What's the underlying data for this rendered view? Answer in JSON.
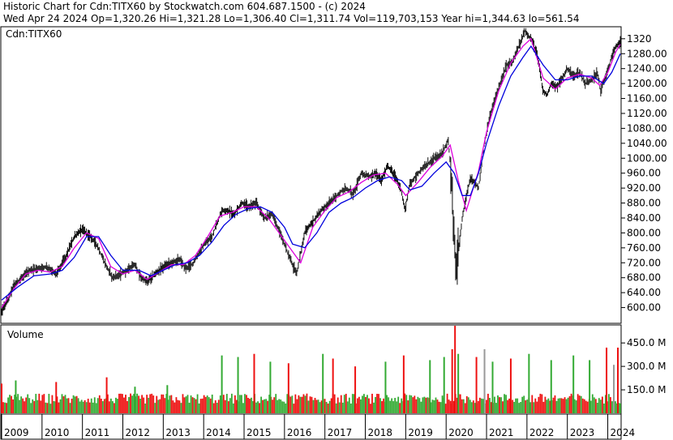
{
  "header": {
    "line1": "Historic Chart for Cdn:TITX60 by Stockwatch.com 604.687.1500 - (c) 2024",
    "line2": "Wed Apr 24 2024   Op=1,320.26   Hi=1,321.28   Lo=1,306.40   Cl=1,311.74   Vol=119,703,153   Year hi=1,344.63   lo=561.54"
  },
  "colors": {
    "price_bar": "#111111",
    "ma_short": "#dd00dd",
    "ma_long": "#0000dd",
    "volume_up": "#33aa33",
    "volume_down": "#ee1111",
    "volume_flat": "#999999",
    "frame": "#000000"
  },
  "chart_data": [
    {
      "type": "line",
      "panel": "price",
      "title": "Cdn:TITX60",
      "ylim": [
        560,
        1350
      ],
      "yticks": [
        600,
        640,
        680,
        720,
        760,
        800,
        840,
        880,
        920,
        960,
        1000,
        1040,
        1080,
        1120,
        1160,
        1200,
        1240,
        1280,
        1320
      ],
      "ytick_labels": [
        "600.00",
        "640.00",
        "680.00",
        "720.00",
        "760.00",
        "800.00",
        "840.00",
        "880.00",
        "920.00",
        "960.00",
        "1000.00",
        "1040.00",
        "1080.00",
        "1120.00",
        "1160.00",
        "1200.00",
        "1240.00",
        "1280.00",
        "1320"
      ],
      "x_labels": [
        "2009",
        "2010",
        "2011",
        "2012",
        "2013",
        "2014",
        "2015",
        "2016",
        "2017",
        "2018",
        "2019",
        "2020",
        "2021",
        "2022",
        "2023",
        "2024"
      ],
      "x_start": 2009.0,
      "x_end": 2024.31,
      "series": [
        {
          "role": "price",
          "x": [
            2009.0,
            2009.15,
            2009.3,
            2009.5,
            2009.7,
            2009.9,
            2010.1,
            2010.35,
            2010.6,
            2010.8,
            2011.0,
            2011.2,
            2011.35,
            2011.55,
            2011.75,
            2011.95,
            2012.1,
            2012.3,
            2012.45,
            2012.6,
            2012.8,
            2013.0,
            2013.2,
            2013.4,
            2013.55,
            2013.75,
            2013.95,
            2014.2,
            2014.45,
            2014.6,
            2014.75,
            2014.95,
            2015.1,
            2015.3,
            2015.5,
            2015.7,
            2015.85,
            2016.0,
            2016.1,
            2016.3,
            2016.5,
            2016.7,
            2016.9,
            2017.1,
            2017.3,
            2017.5,
            2017.7,
            2017.9,
            2018.1,
            2018.25,
            2018.4,
            2018.55,
            2018.75,
            2018.9,
            2018.98,
            2019.1,
            2019.3,
            2019.5,
            2019.7,
            2019.9,
            2020.05,
            2020.13,
            2020.2,
            2020.25,
            2020.4,
            2020.6,
            2020.8,
            2020.95,
            2021.1,
            2021.3,
            2021.5,
            2021.65,
            2021.8,
            2021.95,
            2022.1,
            2022.25,
            2022.4,
            2022.5,
            2022.6,
            2022.75,
            2022.9,
            2023.0,
            2023.15,
            2023.3,
            2023.45,
            2023.6,
            2023.75,
            2023.82,
            2023.95,
            2024.1,
            2024.2,
            2024.31
          ],
          "y": [
            590,
            620,
            660,
            680,
            700,
            705,
            710,
            690,
            740,
            790,
            810,
            790,
            770,
            720,
            680,
            690,
            700,
            715,
            680,
            670,
            690,
            710,
            720,
            730,
            705,
            720,
            760,
            790,
            860,
            860,
            850,
            880,
            870,
            880,
            840,
            850,
            810,
            770,
            740,
            690,
            800,
            830,
            860,
            880,
            900,
            920,
            905,
            960,
            950,
            960,
            940,
            980,
            950,
            910,
            860,
            930,
            960,
            980,
            1000,
            1010,
            1050,
            950,
            780,
            700,
            840,
            950,
            920,
            1040,
            1120,
            1190,
            1250,
            1260,
            1300,
            1340,
            1320,
            1280,
            1180,
            1170,
            1200,
            1190,
            1220,
            1240,
            1220,
            1230,
            1200,
            1210,
            1230,
            1180,
            1220,
            1270,
            1300,
            1312
          ]
        },
        {
          "role": "ma_short",
          "x": [
            2009.0,
            2009.3,
            2009.6,
            2009.9,
            2010.2,
            2010.5,
            2010.8,
            2011.1,
            2011.4,
            2011.7,
            2012.0,
            2012.3,
            2012.6,
            2012.9,
            2013.2,
            2013.5,
            2013.8,
            2014.1,
            2014.4,
            2014.7,
            2015.0,
            2015.3,
            2015.6,
            2015.9,
            2016.2,
            2016.4,
            2016.7,
            2017.0,
            2017.3,
            2017.6,
            2017.9,
            2018.2,
            2018.5,
            2018.8,
            2019.0,
            2019.3,
            2019.6,
            2019.9,
            2020.1,
            2020.3,
            2020.5,
            2020.8,
            2021.0,
            2021.3,
            2021.6,
            2021.9,
            2022.1,
            2022.4,
            2022.7,
            2023.0,
            2023.3,
            2023.6,
            2023.8,
            2024.0,
            2024.2,
            2024.31
          ],
          "y": [
            600,
            650,
            690,
            700,
            695,
            710,
            760,
            800,
            785,
            710,
            690,
            700,
            675,
            695,
            715,
            715,
            740,
            790,
            845,
            855,
            870,
            870,
            840,
            795,
            750,
            720,
            815,
            860,
            895,
            910,
            935,
            955,
            960,
            930,
            900,
            935,
            975,
            1005,
            1035,
            940,
            860,
            965,
            1070,
            1180,
            1255,
            1300,
            1320,
            1215,
            1185,
            1215,
            1225,
            1215,
            1195,
            1230,
            1285,
            1305
          ]
        },
        {
          "role": "ma_long",
          "x": [
            2009.0,
            2009.4,
            2009.8,
            2010.2,
            2010.5,
            2010.8,
            2011.1,
            2011.4,
            2011.7,
            2012.0,
            2012.4,
            2012.7,
            2013.0,
            2013.3,
            2013.6,
            2013.9,
            2014.2,
            2014.5,
            2014.8,
            2015.1,
            2015.4,
            2015.7,
            2016.0,
            2016.2,
            2016.5,
            2016.8,
            2017.1,
            2017.4,
            2017.7,
            2018.0,
            2018.3,
            2018.6,
            2018.9,
            2019.1,
            2019.4,
            2019.7,
            2020.0,
            2020.2,
            2020.4,
            2020.6,
            2020.8,
            2021.0,
            2021.3,
            2021.6,
            2021.9,
            2022.1,
            2022.4,
            2022.7,
            2023.0,
            2023.3,
            2023.6,
            2023.9,
            2024.1,
            2024.31
          ],
          "y": [
            620,
            655,
            685,
            690,
            700,
            735,
            790,
            790,
            740,
            700,
            700,
            685,
            700,
            715,
            720,
            740,
            775,
            820,
            850,
            865,
            870,
            855,
            815,
            770,
            760,
            800,
            855,
            880,
            895,
            920,
            940,
            950,
            940,
            915,
            925,
            960,
            990,
            960,
            900,
            900,
            960,
            1040,
            1140,
            1220,
            1270,
            1300,
            1250,
            1210,
            1210,
            1220,
            1220,
            1200,
            1230,
            1280
          ]
        }
      ]
    },
    {
      "type": "bar",
      "panel": "volume",
      "title": "Volume",
      "ylim": [
        0,
        560
      ],
      "yticks": [
        150,
        300,
        450
      ],
      "ytick_labels": [
        "150.0 M",
        "300.0 M",
        "450.0 M"
      ],
      "spikes": [
        {
          "x": 2009.0,
          "value": 190,
          "dir": "down"
        },
        {
          "x": 2009.35,
          "value": 210,
          "dir": "up"
        },
        {
          "x": 2010.35,
          "value": 200,
          "dir": "down"
        },
        {
          "x": 2011.6,
          "value": 230,
          "dir": "down"
        },
        {
          "x": 2012.3,
          "value": 170,
          "dir": "up"
        },
        {
          "x": 2013.1,
          "value": 180,
          "dir": "up"
        },
        {
          "x": 2014.45,
          "value": 370,
          "dir": "up"
        },
        {
          "x": 2014.85,
          "value": 360,
          "dir": "up"
        },
        {
          "x": 2015.25,
          "value": 380,
          "dir": "down"
        },
        {
          "x": 2015.65,
          "value": 330,
          "dir": "up"
        },
        {
          "x": 2016.1,
          "value": 320,
          "dir": "down"
        },
        {
          "x": 2016.95,
          "value": 380,
          "dir": "up"
        },
        {
          "x": 2017.2,
          "value": 350,
          "dir": "down"
        },
        {
          "x": 2017.75,
          "value": 300,
          "dir": "down"
        },
        {
          "x": 2018.5,
          "value": 330,
          "dir": "up"
        },
        {
          "x": 2018.95,
          "value": 370,
          "dir": "down"
        },
        {
          "x": 2019.6,
          "value": 340,
          "dir": "up"
        },
        {
          "x": 2019.95,
          "value": 360,
          "dir": "up"
        },
        {
          "x": 2020.15,
          "value": 410,
          "dir": "down"
        },
        {
          "x": 2020.22,
          "value": 570,
          "dir": "down"
        },
        {
          "x": 2020.3,
          "value": 380,
          "dir": "up"
        },
        {
          "x": 2020.75,
          "value": 360,
          "dir": "down"
        },
        {
          "x": 2020.95,
          "value": 410,
          "dir": "flat"
        },
        {
          "x": 2021.15,
          "value": 330,
          "dir": "up"
        },
        {
          "x": 2021.6,
          "value": 350,
          "dir": "down"
        },
        {
          "x": 2022.05,
          "value": 380,
          "dir": "up"
        },
        {
          "x": 2022.6,
          "value": 340,
          "dir": "up"
        },
        {
          "x": 2023.15,
          "value": 370,
          "dir": "up"
        },
        {
          "x": 2023.55,
          "value": 340,
          "dir": "up"
        },
        {
          "x": 2023.97,
          "value": 420,
          "dir": "down"
        },
        {
          "x": 2024.15,
          "value": 310,
          "dir": "flat"
        },
        {
          "x": 2024.25,
          "value": 420,
          "dir": "down"
        }
      ],
      "base_level": 110
    }
  ]
}
